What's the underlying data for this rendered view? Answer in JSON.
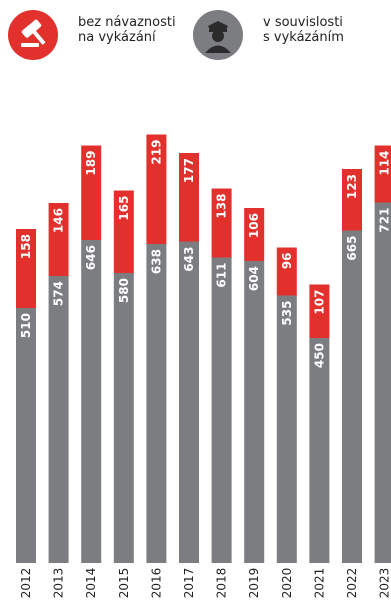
{
  "legend": {
    "red_line1": "bez návaznosti",
    "red_line2": "na vykázání",
    "grey_line1": "v souvislosti",
    "grey_line2": "s vykázáním"
  },
  "colors": {
    "bottom": "#7b7d80",
    "top": "#e2312c",
    "text": "#222222"
  },
  "icons": {
    "red": "gavel-icon",
    "grey": "police-officer-icon"
  },
  "chart_data": {
    "type": "bar",
    "stacked": true,
    "categories": [
      "2012",
      "2013",
      "2014",
      "2015",
      "2016",
      "2017",
      "2018",
      "2019",
      "2020",
      "2021",
      "2022",
      "2023"
    ],
    "series": [
      {
        "name": "v souvislosti s vykázáním",
        "values": [
          510,
          574,
          646,
          580,
          638,
          643,
          611,
          604,
          535,
          450,
          665,
          721
        ]
      },
      {
        "name": "bez návaznosti na vykázání",
        "values": [
          158,
          146,
          189,
          165,
          219,
          177,
          138,
          106,
          96,
          107,
          123,
          114
        ]
      }
    ],
    "title": "",
    "xlabel": "",
    "ylabel": "",
    "ylim": [
      0,
      857
    ],
    "grid": false,
    "legend_position": "top"
  }
}
